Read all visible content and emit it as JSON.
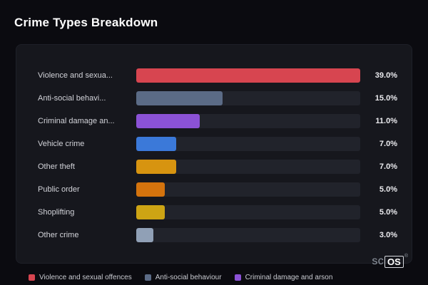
{
  "page": {
    "title": "Crime Types Breakdown",
    "brand": {
      "prefix": "sc",
      "suffix": "OS",
      "registered": "®"
    }
  },
  "chart_data": {
    "type": "bar",
    "orientation": "horizontal",
    "title": "Crime Types Breakdown",
    "categories": [
      "Violence and sexua...",
      "Anti-social behavi...",
      "Criminal damage an...",
      "Vehicle crime",
      "Other theft",
      "Public order",
      "Shoplifting",
      "Other crime"
    ],
    "values": [
      39.0,
      15.0,
      11.0,
      7.0,
      7.0,
      5.0,
      5.0,
      3.0
    ],
    "value_labels": [
      "39.0%",
      "15.0%",
      "11.0%",
      "7.0%",
      "7.0%",
      "5.0%",
      "5.0%",
      "3.0%"
    ],
    "bar_colors": [
      "#d74550",
      "#5b6b86",
      "#8b52d6",
      "#3b79d9",
      "#d79410",
      "#d4730d",
      "#cda414",
      "#90a0b6"
    ],
    "xlim": [
      0,
      39
    ],
    "grid": false,
    "legend_position": "bottom",
    "legend": [
      {
        "label": "Violence and sexual offences",
        "color": "#d74550"
      },
      {
        "label": "Anti-social behaviour",
        "color": "#5b6b86"
      },
      {
        "label": "Criminal damage and arson",
        "color": "#8b52d6"
      }
    ]
  },
  "theme": {
    "page_bg": "#0b0b10",
    "card_bg": "#16171d",
    "track_bg": "#21232b",
    "text_primary": "#ffffff",
    "text_secondary": "#d2d3d9"
  }
}
